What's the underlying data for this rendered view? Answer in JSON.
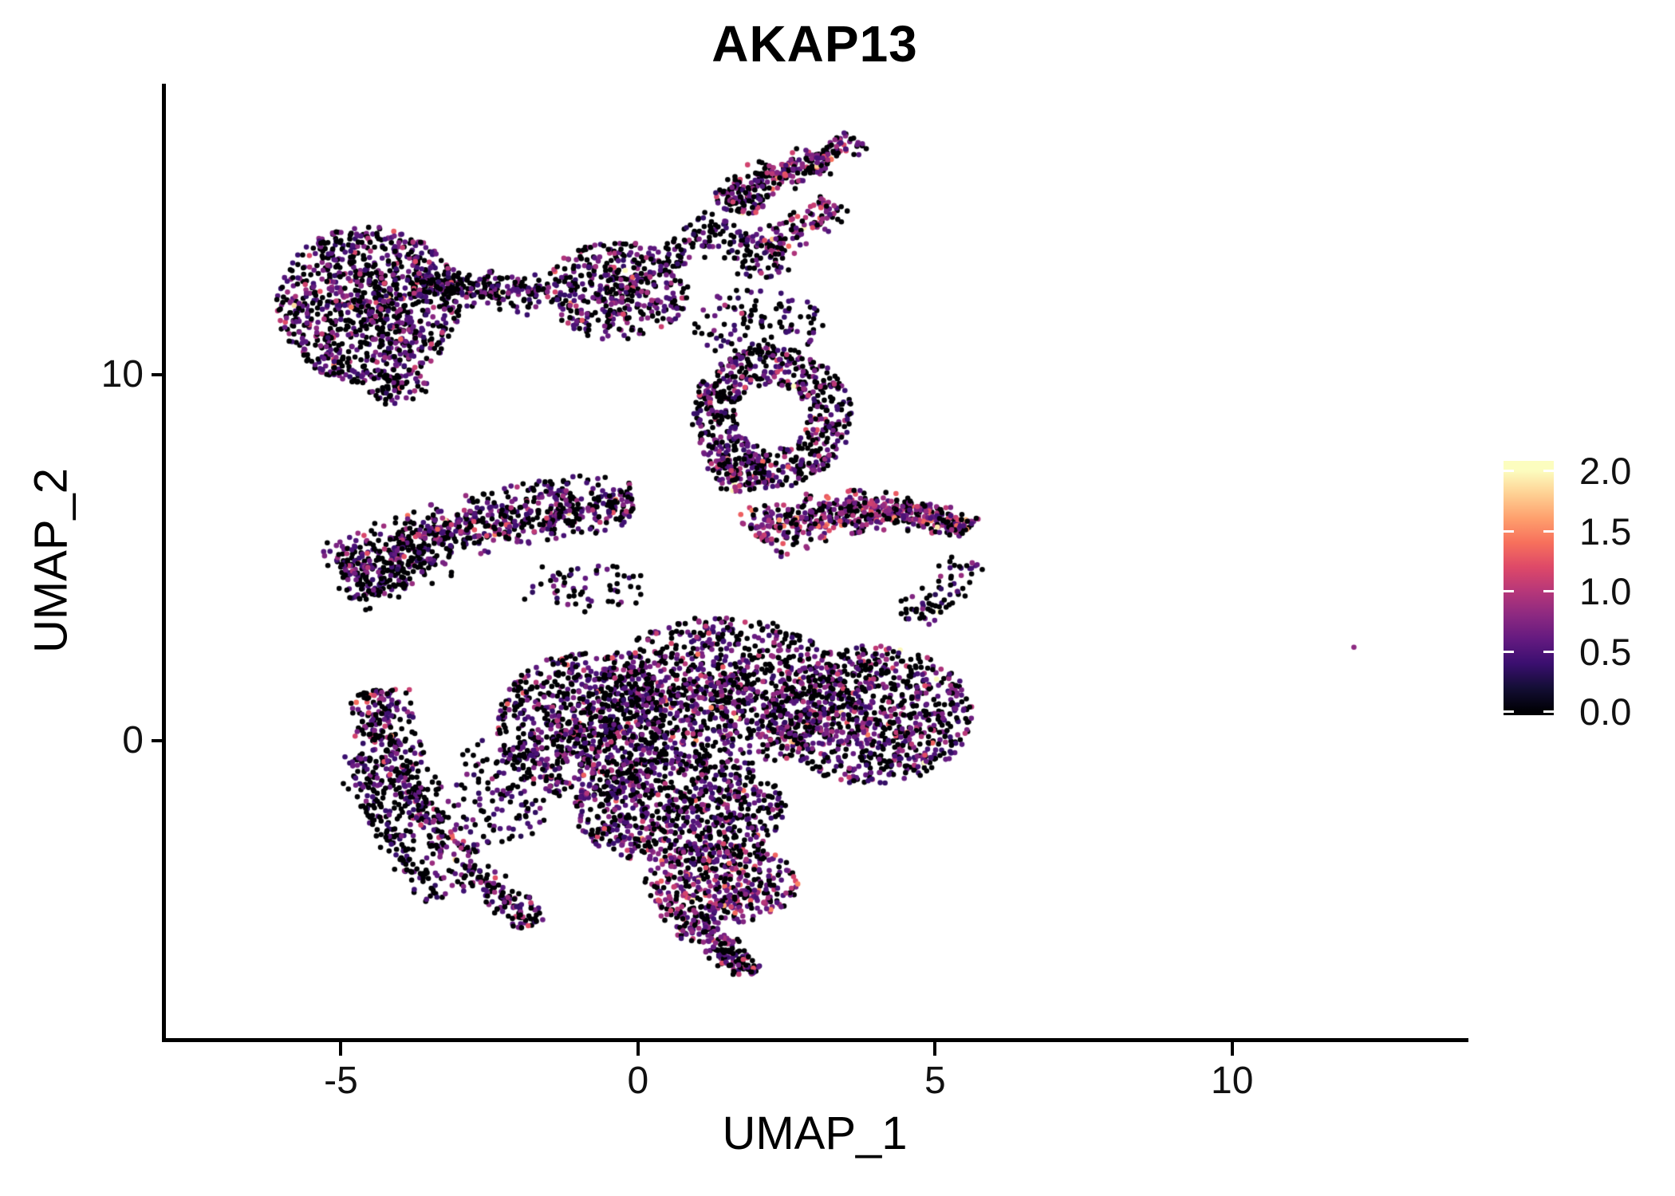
{
  "title": "AKAP13",
  "background": "#ffffff",
  "axis_color": "#000000",
  "chart_data": {
    "type": "scatter",
    "title": "AKAP13",
    "x_axis": {
      "title": "UMAP_1",
      "ticks": [
        {
          "value": -5,
          "label": "-5"
        },
        {
          "value": 0,
          "label": "0"
        },
        {
          "value": 5,
          "label": "5"
        },
        {
          "value": 10,
          "label": "10"
        }
      ]
    },
    "y_axis": {
      "title": "UMAP_2",
      "ticks": [
        {
          "value": 10,
          "label": "10"
        },
        {
          "value": 0,
          "label": "0"
        }
      ]
    },
    "xlim": [
      -7.96,
      13.91
    ],
    "ylim": [
      -8.13,
      17.95
    ],
    "grid": false,
    "legend": {
      "position": "right",
      "value_range": [
        0.0,
        2.0
      ],
      "bar_value_range": [
        -0.03,
        2.08
      ],
      "ticks": [
        {
          "value": 2.0,
          "label": "2.0"
        },
        {
          "value": 1.5,
          "label": "1.5"
        },
        {
          "value": 1.0,
          "label": "1.0"
        },
        {
          "value": 0.5,
          "label": "0.5"
        },
        {
          "value": 0.0,
          "label": "0.0"
        }
      ],
      "colormap": "magma",
      "colormap_stops": [
        [
          0.0,
          "#000004"
        ],
        [
          0.1,
          "#140e36"
        ],
        [
          0.2,
          "#3b0f70"
        ],
        [
          0.3,
          "#641a80"
        ],
        [
          0.4,
          "#8c2981"
        ],
        [
          0.5,
          "#b73779"
        ],
        [
          0.6,
          "#de4968"
        ],
        [
          0.7,
          "#f7705c"
        ],
        [
          0.8,
          "#fe9f6d"
        ],
        [
          0.9,
          "#fecf92"
        ],
        [
          1.0,
          "#fcfdbf"
        ]
      ]
    },
    "points": {
      "total_approx": 9720,
      "marker_diameter_px": 6.6,
      "seed": 42,
      "value_mixes": {
        "dark": {
          "p_zero": 0.62,
          "base": 0.3,
          "sd": 0.3,
          "p_high": 0.002
        },
        "normal": {
          "p_zero": 0.5,
          "base": 0.35,
          "sd": 0.38,
          "p_high": 0.004
        },
        "rich": {
          "p_zero": 0.36,
          "base": 0.45,
          "sd": 0.45,
          "p_high": 0.008
        }
      },
      "clusters": [
        {
          "name": "top-left-blob",
          "shape": "blob",
          "cx": -4.55,
          "cy": 11.9,
          "rx": 1.55,
          "ry": 2.15,
          "n": 1000,
          "mix": "normal"
        },
        {
          "name": "top-left-tail",
          "shape": "blob",
          "cx": -4.05,
          "cy": 9.7,
          "rx": 0.5,
          "ry": 0.55,
          "n": 70,
          "mix": "dark"
        },
        {
          "name": "top-chain",
          "shape": "band",
          "x1": -3.8,
          "y1": 12.35,
          "x2": -1.6,
          "y2": 12.1,
          "cx": -2.7,
          "cy": 12.6,
          "thickness": 0.5,
          "n": 240,
          "mix": "dark"
        },
        {
          "name": "top-mid-cluster",
          "shape": "blob",
          "cx": -0.35,
          "cy": 12.3,
          "rx": 1.2,
          "ry": 1.35,
          "n": 430,
          "mix": "normal"
        },
        {
          "name": "mid-connector-up",
          "shape": "band",
          "x1": 0.5,
          "y1": 13.0,
          "x2": 1.4,
          "y2": 14.3,
          "cx": 0.9,
          "cy": 13.6,
          "thickness": 0.4,
          "n": 80,
          "mix": "dark"
        },
        {
          "name": "top-right-clump",
          "shape": "blob",
          "cx": 1.75,
          "cy": 14.9,
          "rx": 0.45,
          "ry": 0.55,
          "n": 120,
          "mix": "normal"
        },
        {
          "name": "top-right-arm",
          "shape": "band",
          "x1": 2.0,
          "y1": 15.3,
          "x2": 3.7,
          "y2": 16.4,
          "cx": 2.8,
          "cy": 15.6,
          "thickness": 0.42,
          "n": 190,
          "mix": "rich"
        },
        {
          "name": "top-right-lower-arm",
          "shape": "band",
          "x1": 2.1,
          "y1": 13.4,
          "x2": 3.3,
          "y2": 14.7,
          "cx": 2.7,
          "cy": 13.9,
          "thickness": 0.38,
          "n": 120,
          "mix": "rich"
        },
        {
          "name": "top-right-connector",
          "shape": "band",
          "x1": 1.6,
          "y1": 13.9,
          "x2": 2.3,
          "y2": 12.7,
          "cx": 1.9,
          "cy": 13.3,
          "thickness": 0.45,
          "n": 70,
          "mix": "dark"
        },
        {
          "name": "upper-sparse",
          "shape": "blob",
          "cx": 2.0,
          "cy": 11.4,
          "rx": 1.15,
          "ry": 0.95,
          "n": 110,
          "mix": "dark"
        },
        {
          "name": "ring-cluster",
          "shape": "ring",
          "cx": 2.25,
          "cy": 8.85,
          "rx": 1.35,
          "ry": 1.95,
          "hole": 0.45,
          "n": 660,
          "mix": "normal"
        },
        {
          "name": "ring-lower-clump",
          "shape": "blob",
          "cx": 1.7,
          "cy": 7.3,
          "rx": 0.55,
          "ry": 0.5,
          "n": 90,
          "mix": "rich"
        },
        {
          "name": "left-band",
          "shape": "band",
          "x1": -5.05,
          "y1": 4.55,
          "x2": -0.1,
          "y2": 6.55,
          "cx": -2.8,
          "cy": 6.3,
          "thickness": 0.72,
          "n": 780,
          "mix": "normal"
        },
        {
          "name": "left-band-fringe",
          "shape": "band",
          "x1": -4.9,
          "y1": 3.95,
          "x2": -3.3,
          "y2": 5.0,
          "cx": -4.2,
          "cy": 4.4,
          "thickness": 0.45,
          "n": 110,
          "mix": "dark"
        },
        {
          "name": "right-band",
          "shape": "band",
          "x1": 2.0,
          "y1": 5.55,
          "x2": 5.55,
          "y2": 5.75,
          "cx": 3.8,
          "cy": 6.9,
          "thickness": 0.7,
          "n": 560,
          "mix": "rich",
          "taper": "end"
        },
        {
          "name": "right-band-trail",
          "shape": "band",
          "x1": 5.6,
          "y1": 4.9,
          "x2": 4.6,
          "y2": 3.2,
          "cx": 5.2,
          "cy": 4.0,
          "thickness": 0.45,
          "n": 70,
          "mix": "dark"
        },
        {
          "name": "mid-sparse",
          "shape": "blob",
          "cx": -0.9,
          "cy": 4.2,
          "rx": 1.2,
          "ry": 0.7,
          "n": 60,
          "mix": "dark"
        },
        {
          "name": "crescent",
          "shape": "band",
          "x1": -4.4,
          "y1": 1.4,
          "x2": -2.9,
          "y2": -3.2,
          "cx": -4.3,
          "cy": -1.2,
          "thickness": 0.5,
          "n": 420,
          "mix": "normal"
        },
        {
          "name": "crescent-outer",
          "shape": "band",
          "x1": -4.7,
          "y1": -0.4,
          "x2": -3.3,
          "y2": -4.3,
          "cx": -4.4,
          "cy": -2.6,
          "thickness": 0.35,
          "n": 160,
          "mix": "dark"
        },
        {
          "name": "crescent-hook",
          "shape": "band",
          "x1": -3.0,
          "y1": -3.4,
          "x2": -1.7,
          "y2": -5.0,
          "cx": -2.4,
          "cy": -4.2,
          "thickness": 0.4,
          "n": 130,
          "mix": "normal"
        },
        {
          "name": "body-left",
          "shape": "blob",
          "cx": -0.9,
          "cy": 0.4,
          "rx": 1.5,
          "ry": 2.0,
          "n": 850,
          "mix": "normal"
        },
        {
          "name": "body-center",
          "shape": "blob",
          "cx": 1.4,
          "cy": 1.3,
          "rx": 2.1,
          "ry": 2.1,
          "n": 1050,
          "mix": "normal"
        },
        {
          "name": "body-right",
          "shape": "blob",
          "cx": 3.9,
          "cy": 0.7,
          "rx": 1.75,
          "ry": 1.9,
          "n": 850,
          "mix": "normal"
        },
        {
          "name": "body-lower",
          "shape": "blob",
          "cx": 0.7,
          "cy": -1.9,
          "rx": 1.8,
          "ry": 1.5,
          "n": 750,
          "mix": "normal"
        },
        {
          "name": "body-bottom",
          "shape": "blob",
          "cx": 1.4,
          "cy": -3.9,
          "rx": 1.3,
          "ry": 1.1,
          "n": 420,
          "mix": "rich"
        },
        {
          "name": "bottom-tail",
          "shape": "band",
          "x1": 0.9,
          "y1": -4.6,
          "x2": 1.95,
          "y2": -6.35,
          "cx": 1.2,
          "cy": -5.6,
          "thickness": 0.5,
          "n": 200,
          "mix": "normal",
          "taper": "end"
        },
        {
          "name": "body-left-bridge",
          "shape": "blob",
          "cx": -2.2,
          "cy": -1.2,
          "rx": 0.9,
          "ry": 1.6,
          "n": 130,
          "mix": "dark"
        }
      ],
      "outliers": [
        {
          "x": 12.05,
          "y": 2.55,
          "value": 0.8
        }
      ]
    }
  }
}
